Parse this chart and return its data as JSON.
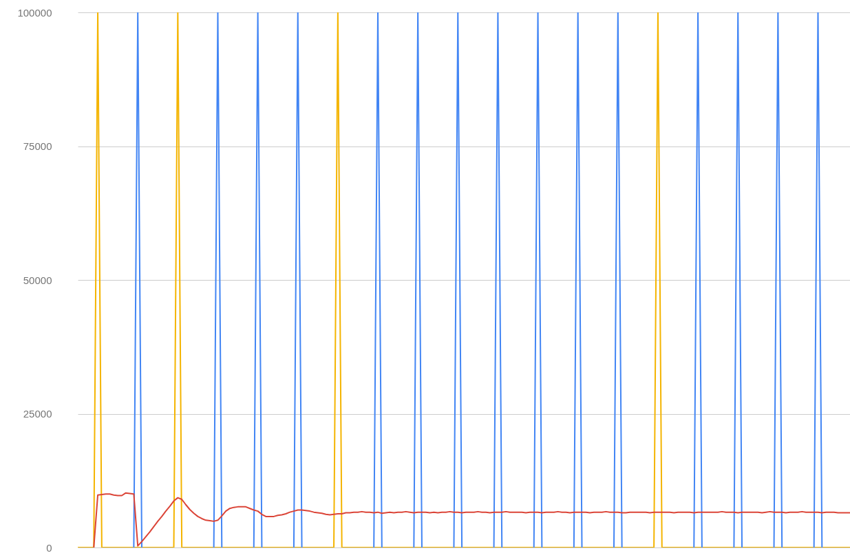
{
  "chart_data": {
    "type": "line",
    "categories": [
      null,
      null,
      null,
      null,
      null,
      null,
      null,
      null,
      null,
      null,
      null,
      null,
      null,
      null,
      null,
      null,
      null,
      null,
      null,
      null,
      null,
      null,
      null,
      null,
      null,
      null,
      null,
      null,
      null,
      null,
      null,
      null,
      null,
      null,
      null,
      null,
      null,
      null,
      null,
      null,
      null,
      null,
      null,
      null,
      null,
      null,
      null,
      null,
      null,
      null,
      null,
      null,
      null,
      null,
      null,
      null,
      null,
      null,
      null,
      null,
      null,
      null,
      null,
      null,
      null,
      null,
      null,
      null,
      null,
      null,
      null,
      null,
      null,
      null,
      null,
      null,
      null,
      null,
      null,
      null,
      null,
      null,
      null,
      null,
      null,
      null,
      null,
      null,
      null,
      null,
      null,
      null,
      null,
      null,
      null,
      null,
      null,
      null,
      null,
      null,
      null,
      null,
      null,
      null,
      null,
      null,
      null,
      null,
      null,
      null,
      null,
      null,
      null,
      null,
      null,
      null,
      null,
      null,
      null,
      null,
      null,
      null,
      null,
      null,
      null,
      null,
      null,
      null,
      null,
      null,
      null,
      null,
      null,
      null,
      null,
      null,
      null,
      null,
      null,
      null,
      null,
      null,
      null,
      null,
      null,
      null,
      null,
      null,
      null,
      null,
      null,
      null,
      null,
      null,
      null,
      null,
      null,
      null,
      null,
      null,
      null,
      null,
      null,
      null,
      null,
      null,
      null,
      null,
      null,
      null,
      null,
      null,
      null,
      null,
      null,
      null,
      null,
      null,
      null,
      null,
      null,
      null,
      null,
      null,
      null,
      null,
      null,
      null,
      null,
      null,
      null,
      null,
      null,
      null
    ],
    "series": [
      {
        "color": "#f4b400",
        "values": [
          0,
          0,
          0,
          0,
          0,
          100000,
          0,
          0,
          0,
          0,
          0,
          0,
          0,
          0,
          0,
          0,
          0,
          0,
          0,
          0,
          0,
          0,
          0,
          0,
          0,
          100000,
          0,
          0,
          0,
          0,
          0,
          0,
          0,
          0,
          0,
          0,
          0,
          0,
          0,
          0,
          0,
          0,
          0,
          0,
          0,
          0,
          0,
          0,
          0,
          0,
          0,
          0,
          0,
          0,
          0,
          0,
          0,
          0,
          0,
          0,
          0,
          0,
          0,
          0,
          0,
          100000,
          0,
          0,
          0,
          0,
          0,
          0,
          0,
          0,
          0,
          0,
          0,
          0,
          0,
          0,
          0,
          0,
          0,
          0,
          0,
          0,
          0,
          0,
          0,
          0,
          0,
          0,
          0,
          0,
          0,
          0,
          0,
          0,
          0,
          0,
          0,
          0,
          0,
          0,
          0,
          0,
          0,
          0,
          0,
          0,
          0,
          0,
          0,
          0,
          0,
          0,
          0,
          0,
          0,
          0,
          0,
          0,
          0,
          0,
          0,
          0,
          0,
          0,
          0,
          0,
          0,
          0,
          0,
          0,
          0,
          0,
          0,
          0,
          0,
          0,
          0,
          0,
          0,
          0,
          0,
          100000,
          0,
          0,
          0,
          0,
          0,
          0,
          0,
          0,
          0,
          0,
          0,
          0,
          0,
          0,
          0,
          0,
          0,
          0,
          0,
          0,
          0,
          0,
          0,
          0,
          0,
          0,
          0,
          0,
          0,
          0,
          0,
          0,
          0,
          0,
          0,
          0,
          0,
          0,
          0,
          0,
          0,
          0,
          0,
          0,
          0,
          0,
          0,
          0
        ]
      },
      {
        "color": "#4285f4",
        "values": [
          null,
          null,
          null,
          null,
          null,
          null,
          null,
          null,
          null,
          null,
          null,
          null,
          null,
          null,
          0,
          100000,
          0,
          null,
          null,
          null,
          null,
          null,
          null,
          null,
          null,
          null,
          null,
          null,
          null,
          null,
          null,
          null,
          null,
          null,
          0,
          100000,
          0,
          null,
          null,
          null,
          null,
          null,
          null,
          null,
          0,
          100000,
          0,
          null,
          null,
          null,
          null,
          null,
          null,
          null,
          0,
          100000,
          0,
          null,
          null,
          null,
          null,
          null,
          null,
          null,
          null,
          null,
          null,
          null,
          null,
          null,
          null,
          null,
          null,
          null,
          0,
          100000,
          0,
          null,
          null,
          null,
          null,
          null,
          null,
          null,
          0,
          100000,
          0,
          null,
          null,
          null,
          null,
          null,
          null,
          null,
          0,
          100000,
          0,
          null,
          null,
          null,
          null,
          null,
          null,
          null,
          0,
          100000,
          0,
          null,
          null,
          null,
          null,
          null,
          null,
          null,
          0,
          100000,
          0,
          null,
          null,
          null,
          null,
          null,
          null,
          null,
          0,
          100000,
          0,
          null,
          null,
          null,
          null,
          null,
          null,
          null,
          0,
          100000,
          0,
          null,
          null,
          null,
          null,
          null,
          null,
          null,
          null,
          null,
          null,
          null,
          null,
          null,
          null,
          null,
          null,
          null,
          0,
          100000,
          0,
          null,
          null,
          null,
          null,
          null,
          null,
          null,
          0,
          100000,
          0,
          null,
          null,
          null,
          null,
          null,
          null,
          null,
          0,
          100000,
          0,
          null,
          null,
          null,
          null,
          null,
          null,
          null,
          0,
          100000,
          0,
          null,
          null,
          null,
          null,
          null,
          null,
          null
        ]
      },
      {
        "color": "#db4437",
        "values": [
          null,
          null,
          null,
          null,
          0,
          9800,
          9900,
          10000,
          10000,
          9800,
          9700,
          9700,
          10200,
          10100,
          10000,
          300,
          1100,
          2000,
          2900,
          3900,
          4900,
          5800,
          6800,
          7700,
          8700,
          9300,
          9000,
          8000,
          7100,
          6400,
          5800,
          5400,
          5100,
          5000,
          4900,
          5100,
          5900,
          6800,
          7300,
          7500,
          7600,
          7600,
          7600,
          7300,
          7000,
          6800,
          6200,
          5800,
          5800,
          5800,
          6000,
          6100,
          6300,
          6600,
          6800,
          7000,
          7000,
          6900,
          6800,
          6600,
          6500,
          6400,
          6200,
          6100,
          6200,
          6300,
          6300,
          6500,
          6500,
          6600,
          6600,
          6700,
          6600,
          6600,
          6500,
          6600,
          6400,
          6500,
          6600,
          6500,
          6600,
          6600,
          6700,
          6600,
          6500,
          6600,
          6600,
          6600,
          6500,
          6600,
          6500,
          6600,
          6600,
          6700,
          6600,
          6600,
          6500,
          6600,
          6600,
          6600,
          6700,
          6600,
          6600,
          6500,
          6600,
          6600,
          6600,
          6700,
          6600,
          6600,
          6600,
          6600,
          6500,
          6600,
          6600,
          6600,
          6500,
          6600,
          6600,
          6600,
          6700,
          6600,
          6600,
          6500,
          6600,
          6600,
          6600,
          6600,
          6500,
          6600,
          6600,
          6600,
          6700,
          6600,
          6600,
          6600,
          6500,
          6500,
          6600,
          6600,
          6600,
          6600,
          6600,
          6500,
          6600,
          6600,
          6600,
          6600,
          6600,
          6500,
          6600,
          6600,
          6600,
          6600,
          6500,
          6600,
          6600,
          6600,
          6600,
          6600,
          6600,
          6700,
          6600,
          6600,
          6600,
          6500,
          6600,
          6600,
          6600,
          6600,
          6600,
          6500,
          6600,
          6700,
          6600,
          6600,
          6600,
          6500,
          6600,
          6600,
          6600,
          6700,
          6600,
          6600,
          6600,
          6600,
          6500,
          6600,
          6600,
          6600,
          6500,
          6500,
          6500,
          6500
        ]
      }
    ],
    "ylim": [
      0,
      100000
    ],
    "yticks": [
      0,
      25000,
      50000,
      75000,
      100000
    ],
    "grid": "y",
    "tick_labels": "y"
  }
}
